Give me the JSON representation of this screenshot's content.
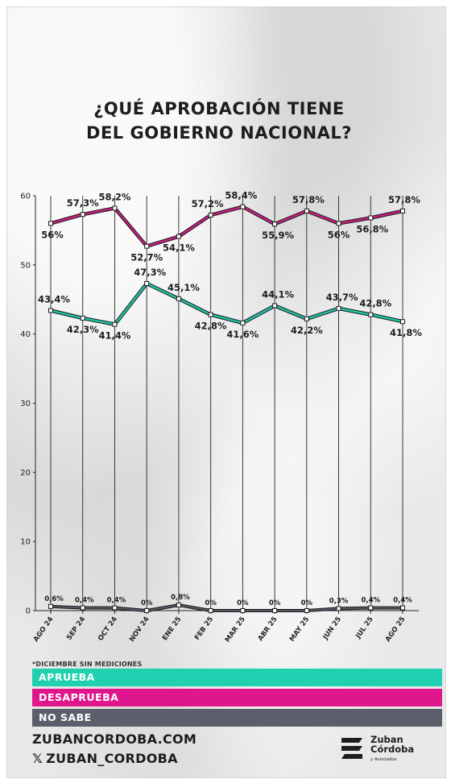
{
  "title_lines": [
    "¿QUÉ APROBACIÓN TIENE",
    "DEL GOBIERNO NACIONAL?"
  ],
  "footnote": "*DICIEMBRE SIN MEDICIONES",
  "chart_data": {
    "type": "line",
    "categories": [
      "AGO 24",
      "SEP 24",
      "OCT 24",
      "NOV 24",
      "ENE 25",
      "FEB 25",
      "MAR 25",
      "ABR 25",
      "MAY 25",
      "JUN 25",
      "JUL 25",
      "AGO 25"
    ],
    "ylim": [
      0,
      60
    ],
    "yticks": [
      0,
      10,
      20,
      30,
      40,
      50,
      60
    ],
    "grid": "vertical",
    "legend_placement": "bottom",
    "series": [
      {
        "name": "DESAPRUEBA",
        "color": "#c8207f",
        "values": [
          56,
          57.3,
          58.2,
          52.7,
          54.1,
          57.2,
          58.4,
          55.9,
          57.8,
          56,
          56.8,
          57.8
        ],
        "labels": [
          "56%",
          "57,3%",
          "58,2%",
          "52,7%",
          "54,1%",
          "57,2%",
          "58,4%",
          "55,9%",
          "57,8%",
          "56%",
          "56,8%",
          "57,8%"
        ]
      },
      {
        "name": "APRUEBA",
        "color": "#1fc7a6",
        "values": [
          43.4,
          42.3,
          41.4,
          47.3,
          45.1,
          42.8,
          41.6,
          44.1,
          42.2,
          43.7,
          42.8,
          41.8
        ],
        "labels": [
          "43,4%",
          "42,3%",
          "41,4%",
          "47,3%",
          "45,1%",
          "42,8%",
          "41,6%",
          "44,1%",
          "42,2%",
          "43,7%",
          "42,8%",
          "41,8%"
        ]
      },
      {
        "name": "NO SABE",
        "color": "#5a5f6b",
        "values": [
          0.6,
          0.4,
          0.4,
          0,
          0.8,
          0,
          0,
          0,
          0,
          0.3,
          0.4,
          0.4
        ],
        "labels": [
          "0,6%",
          "0,4%",
          "0,4%",
          "0%",
          "0,8%",
          "0%",
          "0%",
          "0%",
          "0%",
          "0,3%",
          "0,4%",
          "0,4%"
        ]
      }
    ]
  },
  "legend": [
    {
      "label": "APRUEBA",
      "color": "#1fd1b0"
    },
    {
      "label": "DESAPRUEBA",
      "color": "#e0168c"
    },
    {
      "label": "NO SABE",
      "color": "#5a5f6b"
    }
  ],
  "footer": {
    "website": "ZUBANCORDOBA.COM",
    "social_icon": "x-logo-icon",
    "social": "ZUBAN_CORDOBA"
  },
  "logo": {
    "line1": "Zuban",
    "line2": "Córdoba",
    "subtitle": "y Asociados"
  }
}
